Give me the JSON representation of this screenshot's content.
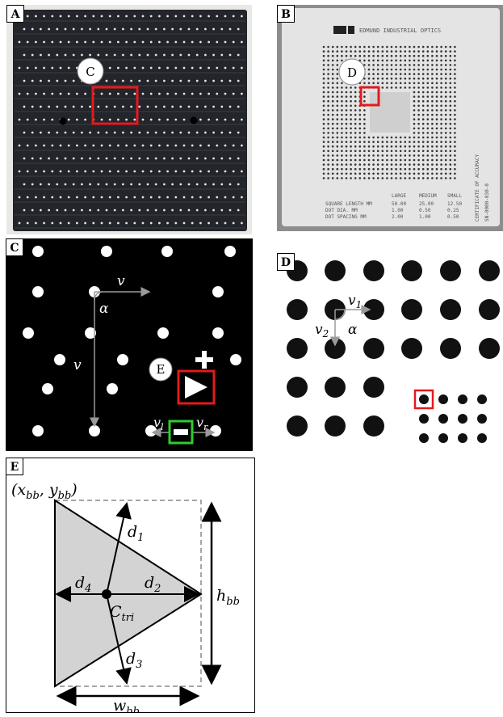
{
  "panels": {
    "A": {
      "tag": "A",
      "callout": "C"
    },
    "B": {
      "tag": "B",
      "callout": "D",
      "brand": "EDMUND INDUSTRIAL OPTICS",
      "table": {
        "headers": [
          "LARGE",
          "MEDIUM",
          "SMALL"
        ],
        "rows": [
          {
            "label": "SQUARE LENGTH MM",
            "values": [
              "50.00",
              "25.00",
              "12.50"
            ]
          },
          {
            "label": "DOT DIA.  MM",
            "values": [
              "1.00",
              "0.50",
              "0.25"
            ]
          },
          {
            "label": "DOT SPACING  MM",
            "values": [
              "2.00",
              "1.00",
              "0.50"
            ]
          }
        ]
      },
      "side_text": "CERTIFICATE OF ACCURACY",
      "side_number": "SN-0000-030-0"
    },
    "C": {
      "tag": "C",
      "callout": "E",
      "labels": {
        "v_top": "v",
        "alpha": "α",
        "v_side": "v",
        "v_left": "v",
        "v_left_sub": "l",
        "v_right": "v",
        "v_right_sub": "r"
      }
    },
    "D": {
      "tag": "D",
      "labels": {
        "v1": "v",
        "v1_sub": "1",
        "v2": "v",
        "v2_sub": "2",
        "alpha": "α"
      }
    },
    "E": {
      "tag": "E",
      "labels": {
        "corner_x": "x",
        "corner_x_sub": "bb",
        "corner_y": "y",
        "corner_y_sub": "bb",
        "d1": "d",
        "d1_sub": "1",
        "d2": "d",
        "d2_sub": "2",
        "d3": "d",
        "d3_sub": "3",
        "d4": "d",
        "d4_sub": "4",
        "c": "C",
        "c_sub": "tri",
        "h": "h",
        "h_sub": "bb",
        "w": "w",
        "w_sub": "bb"
      }
    }
  },
  "colors": {
    "highlight_red": "#e31a1c",
    "highlight_green": "#2ecc2e",
    "arrow_gray": "#9a9a9a",
    "tri_fill": "#d3d3d3",
    "board": "#23252b"
  }
}
